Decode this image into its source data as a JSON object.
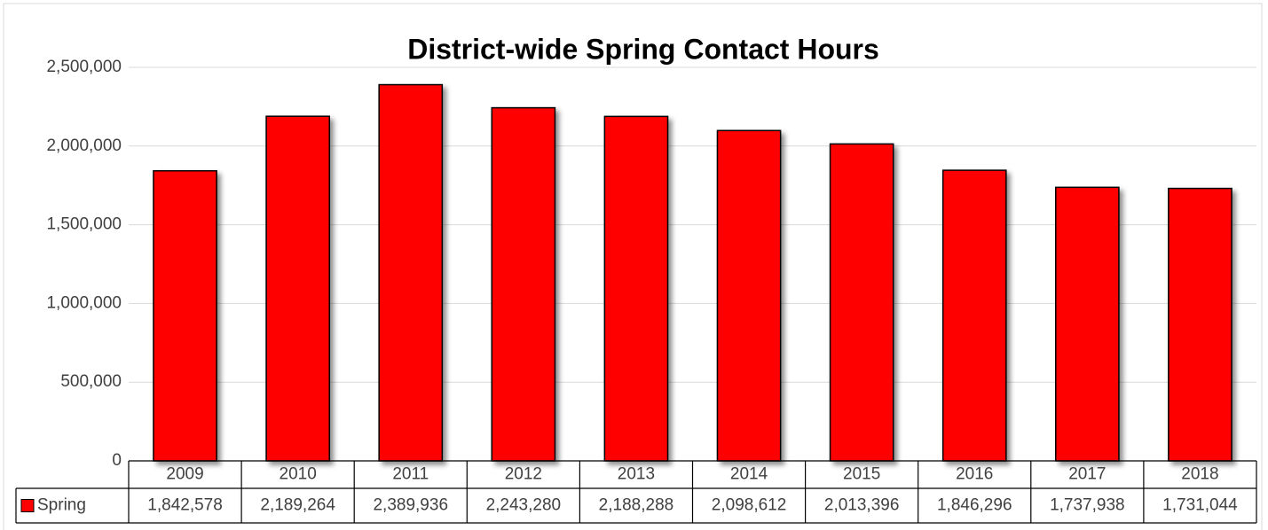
{
  "chart_data": {
    "type": "bar",
    "title": "District-wide Spring Contact Hours",
    "categories": [
      "2009",
      "2010",
      "2011",
      "2012",
      "2013",
      "2014",
      "2015",
      "2016",
      "2017",
      "2018"
    ],
    "series": [
      {
        "name": "Spring",
        "color": "#ff0000",
        "values": [
          1842578,
          2189264,
          2389936,
          2243280,
          2188288,
          2098612,
          2013396,
          1846296,
          1737938,
          1731044
        ],
        "value_labels": [
          "1,842,578",
          "2,189,264",
          "2,389,936",
          "2,243,280",
          "2,188,288",
          "2,098,612",
          "2,013,396",
          "1,846,296",
          "1,737,938",
          "1,731,044"
        ]
      }
    ],
    "ylim": [
      0,
      2500000
    ],
    "yticks": [
      0,
      {
        "value": 500000,
        "label": "500,000"
      },
      {
        "value": 1000000,
        "label": "1,000,000"
      },
      {
        "value": 1500000,
        "label": "1,500,000"
      },
      {
        "value": 2000000,
        "label": "2,000,000"
      },
      {
        "value": 2500000,
        "label": "2,500,000"
      }
    ],
    "grid": true
  }
}
